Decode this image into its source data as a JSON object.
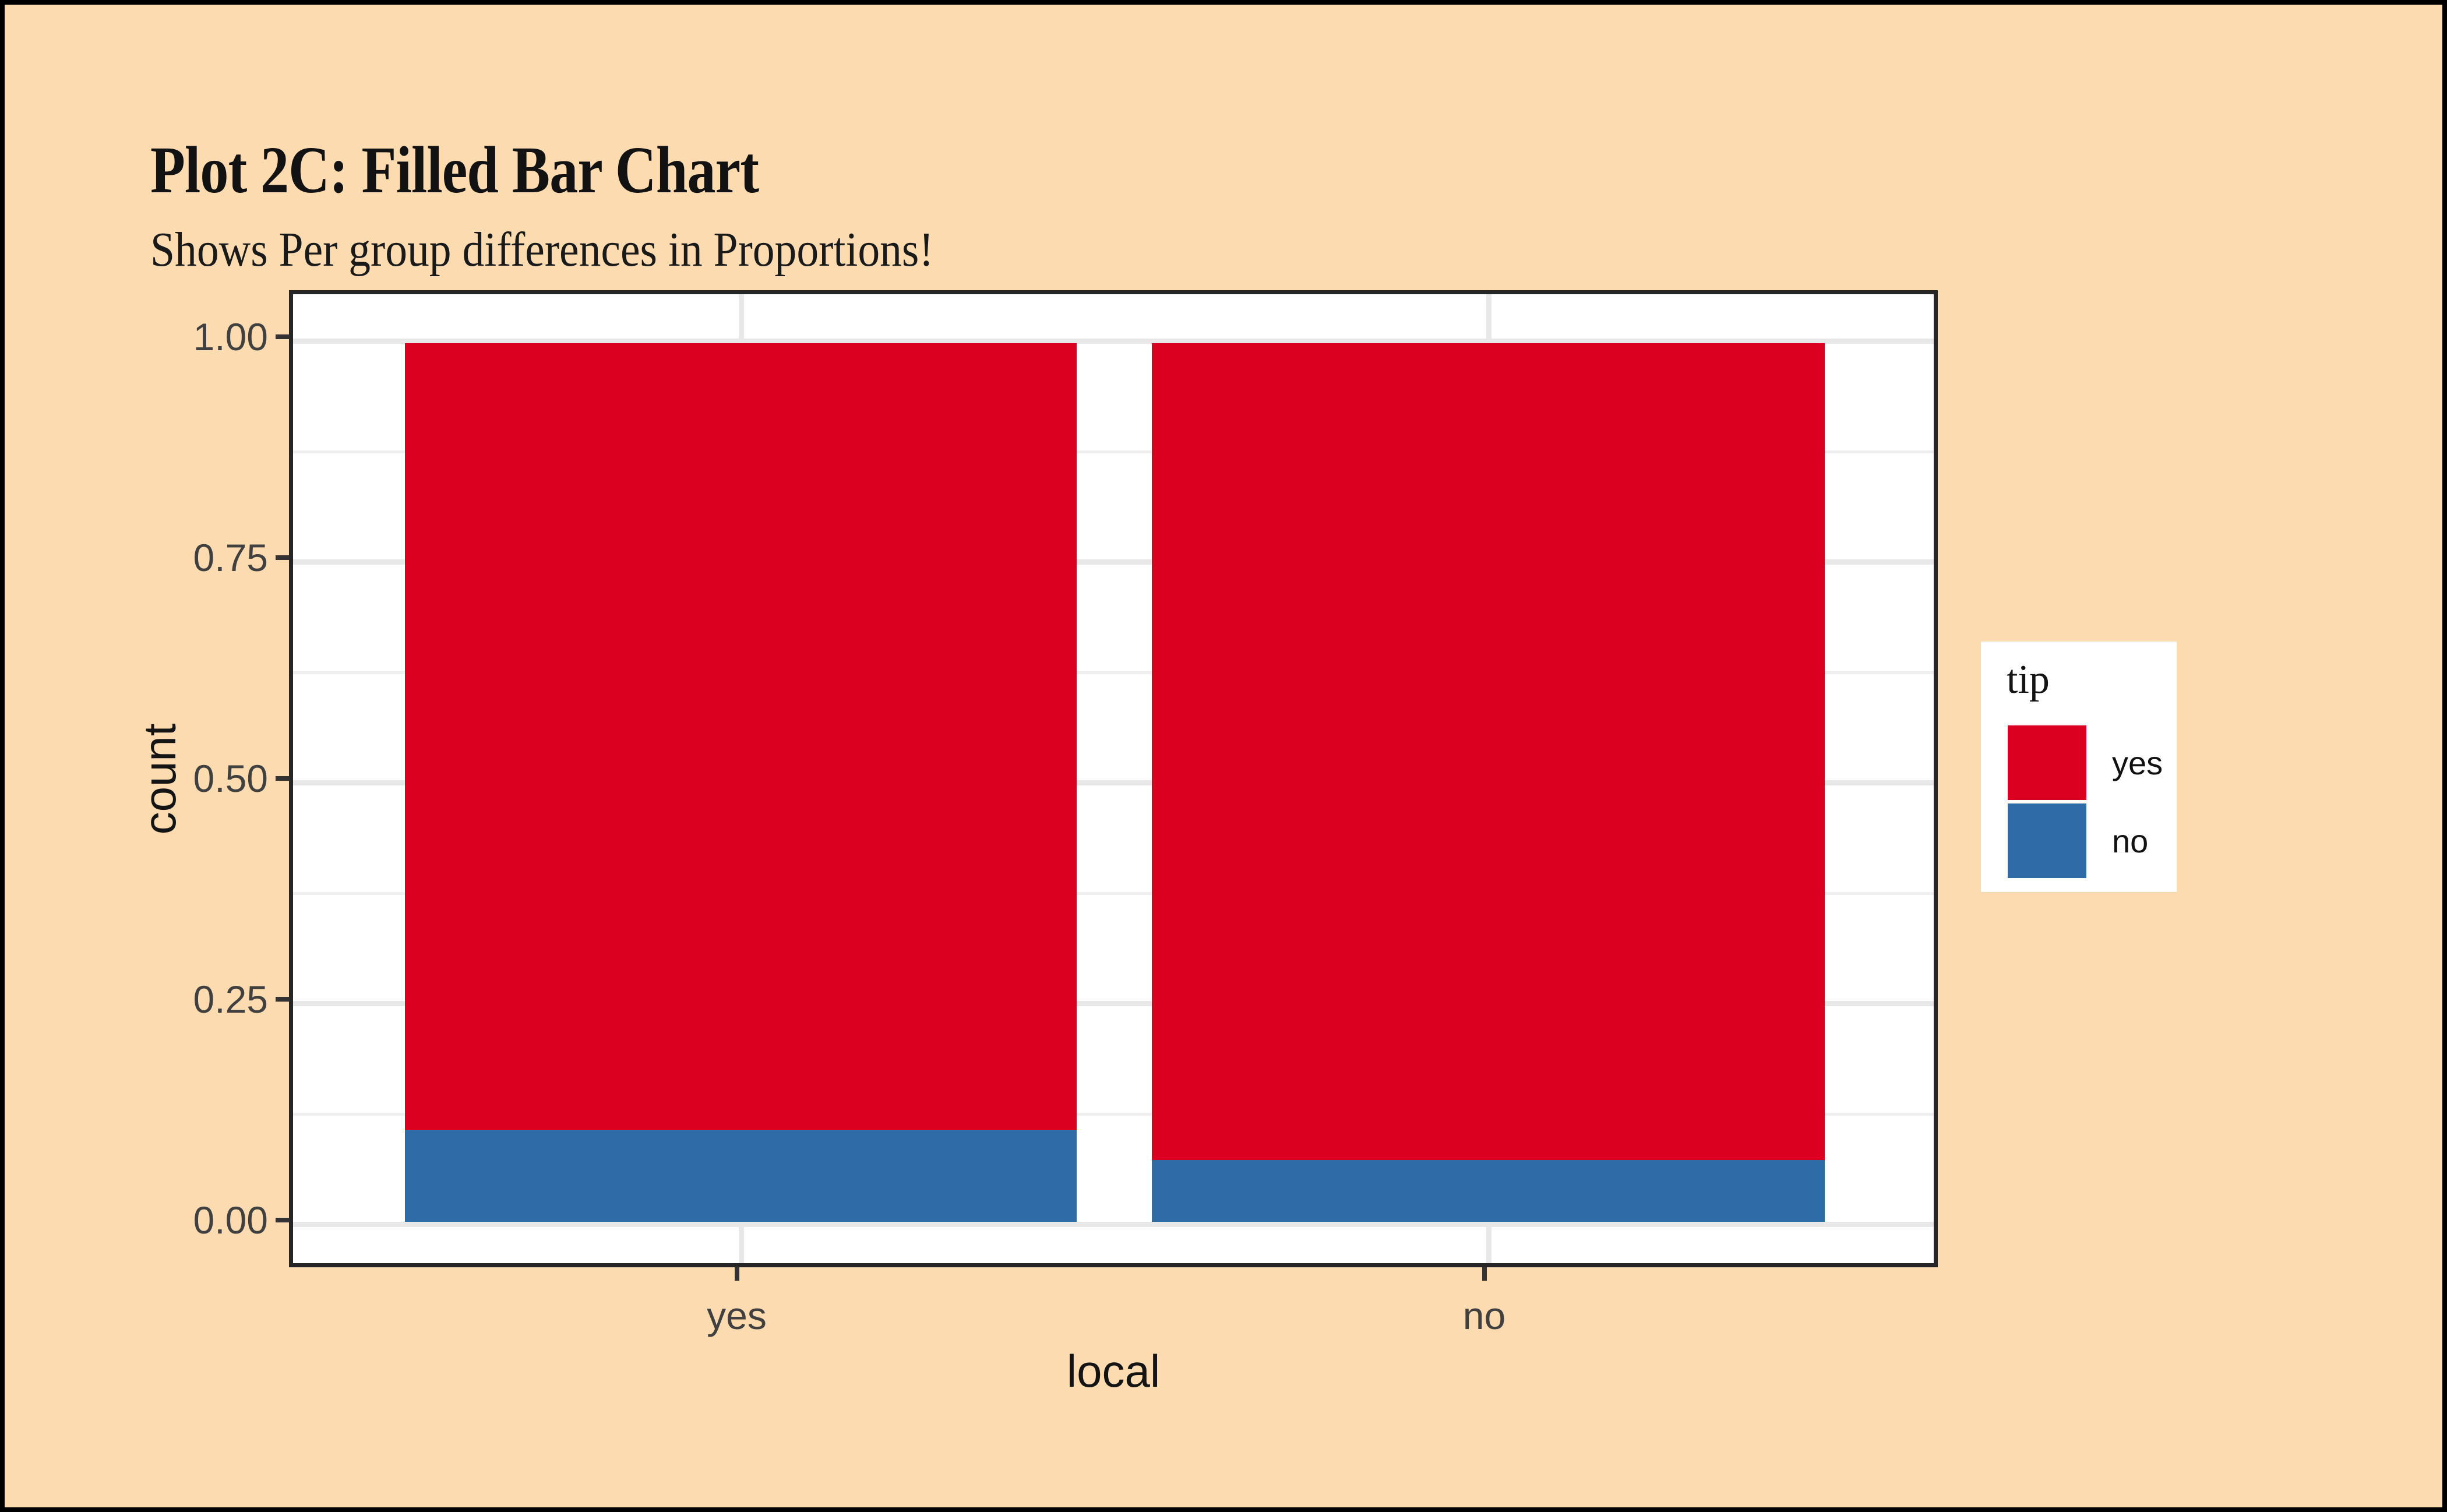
{
  "figure": {
    "title": "Plot 2C: Filled Bar Chart",
    "subtitle": "Shows Per group differences in Proportions!"
  },
  "chart_data": {
    "type": "bar",
    "variant": "stacked-filled-proportion",
    "title": "Plot 2C: Filled Bar Chart",
    "subtitle": "Shows Per group differences in Proportions!",
    "xlabel": "local",
    "ylabel": "count",
    "categories": [
      "yes",
      "no"
    ],
    "series": [
      {
        "name": "yes",
        "color": "#DB001F",
        "values": [
          0.895,
          0.93
        ]
      },
      {
        "name": "no",
        "color": "#2E6BA7",
        "values": [
          0.105,
          0.07
        ]
      }
    ],
    "ylim": [
      0,
      1
    ],
    "yticks": [
      {
        "value": 1.0,
        "label": "1.00"
      },
      {
        "value": 0.75,
        "label": "0.75"
      },
      {
        "value": 0.5,
        "label": "0.50"
      },
      {
        "value": 0.25,
        "label": "0.25"
      },
      {
        "value": 0.0,
        "label": "0.00"
      }
    ],
    "grid": {
      "major_horizontal": [
        0,
        0.25,
        0.5,
        0.75,
        1.0
      ],
      "minor_horizontal": [
        0.125,
        0.375,
        0.625,
        0.875
      ],
      "major_vertical_at_categories": true
    },
    "legend": {
      "title": "tip",
      "position": "right",
      "entries": [
        {
          "label": "yes",
          "color": "#DB001F"
        },
        {
          "label": "no",
          "color": "#2E6BA7"
        }
      ]
    }
  },
  "colors": {
    "page_background": "#FDDBB1",
    "outer_frame": "#000000",
    "panel_background": "#FFFFFF",
    "panel_border": "#262626",
    "gridline_major": "#E8E8E8",
    "gridline_minor": "#EFEFEF",
    "tick_mark": "#333333",
    "axis_text": "#404040",
    "title_text": "#121212"
  }
}
